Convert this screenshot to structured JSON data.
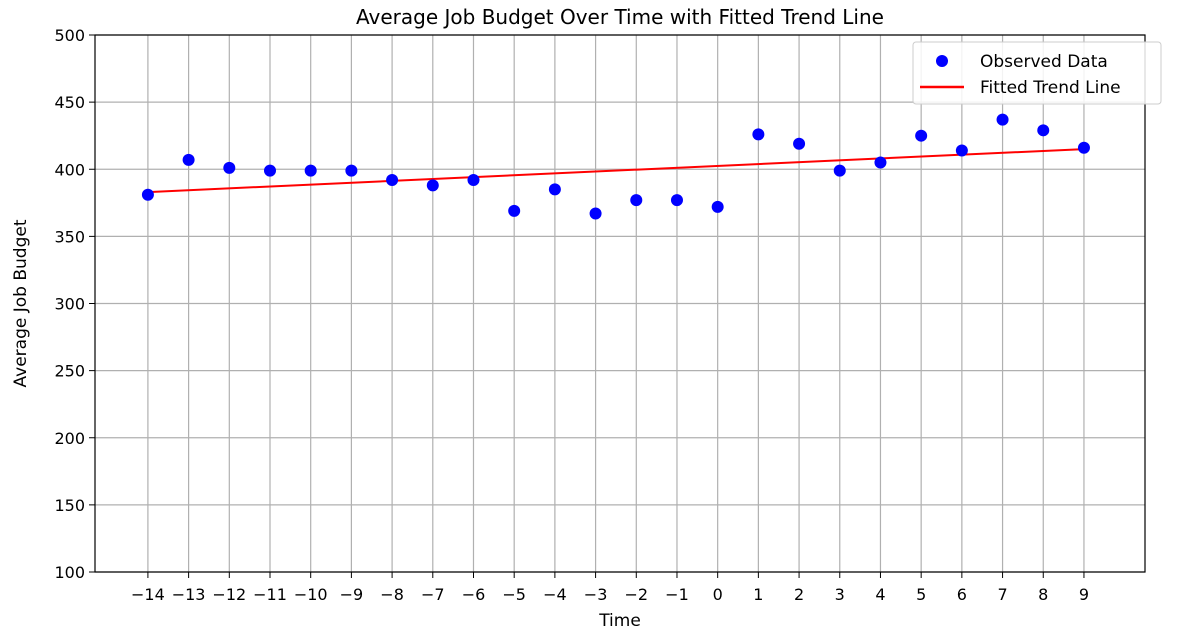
{
  "chart_data": {
    "type": "scatter",
    "title": "Average Job Budget Over Time with Fitted Trend Line",
    "xlabel": "Time",
    "ylabel": "Average Job Budget",
    "xlim": [
      -15.3,
      10.5
    ],
    "ylim": [
      100,
      500
    ],
    "x_ticks": [
      -14,
      -13,
      -12,
      -11,
      -10,
      -9,
      -8,
      -7,
      -6,
      -5,
      -4,
      -3,
      -2,
      -1,
      0,
      1,
      2,
      3,
      4,
      5,
      6,
      7,
      8,
      9
    ],
    "y_ticks": [
      100,
      150,
      200,
      250,
      300,
      350,
      400,
      450,
      500
    ],
    "grid": true,
    "legend_position": "top-right",
    "series": [
      {
        "name": "Observed Data",
        "kind": "scatter",
        "color": "#0000ff",
        "x": [
          -14,
          -13,
          -12,
          -11,
          -10,
          -9,
          -8,
          -7,
          -6,
          -5,
          -4,
          -3,
          -2,
          -1,
          0,
          1,
          2,
          3,
          4,
          5,
          6,
          7,
          8,
          9
        ],
        "y": [
          381,
          407,
          401,
          399,
          399,
          399,
          392,
          388,
          392,
          369,
          385,
          367,
          377,
          377,
          372,
          426,
          419,
          399,
          405,
          425,
          414,
          437,
          429,
          416
        ]
      },
      {
        "name": "Fitted Trend Line",
        "kind": "line",
        "color": "#ff0000",
        "x": [
          -14,
          9
        ],
        "y": [
          383,
          415
        ]
      }
    ]
  }
}
